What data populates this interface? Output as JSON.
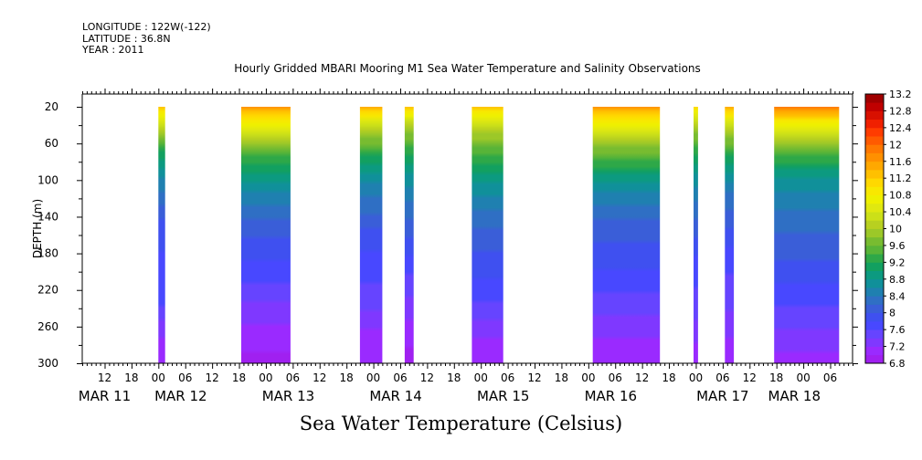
{
  "header": {
    "longitude": "LONGITUDE : 122W(-122)",
    "latitude": "LATITUDE : 36.8N",
    "year": "YEAR : 2011"
  },
  "chart_data": {
    "type": "heatmap",
    "title": "Hourly Gridded MBARI Mooring M1 Sea Water Temperature and Salinity Observations",
    "xlabel": "",
    "ylabel": "DEPTH (m)",
    "colorbar_title": "Sea Water Temperature (Celsius)",
    "x_unit": "hours since MAR 11 00:00",
    "xlim": [
      7,
      179
    ],
    "ylim": [
      300,
      6
    ],
    "y_ticks": [
      20,
      60,
      100,
      140,
      180,
      220,
      260,
      300
    ],
    "x_hour_ticks": [
      {
        "h": 12,
        "label": "12"
      },
      {
        "h": 18,
        "label": "18"
      },
      {
        "h": 24,
        "label": "00"
      },
      {
        "h": 30,
        "label": "06"
      },
      {
        "h": 36,
        "label": "12"
      },
      {
        "h": 42,
        "label": "18"
      },
      {
        "h": 48,
        "label": "00"
      },
      {
        "h": 54,
        "label": "06"
      },
      {
        "h": 60,
        "label": "12"
      },
      {
        "h": 66,
        "label": "18"
      },
      {
        "h": 72,
        "label": "00"
      },
      {
        "h": 78,
        "label": "06"
      },
      {
        "h": 84,
        "label": "12"
      },
      {
        "h": 90,
        "label": "18"
      },
      {
        "h": 96,
        "label": "00"
      },
      {
        "h": 102,
        "label": "06"
      },
      {
        "h": 108,
        "label": "12"
      },
      {
        "h": 114,
        "label": "18"
      },
      {
        "h": 120,
        "label": "00"
      },
      {
        "h": 126,
        "label": "06"
      },
      {
        "h": 132,
        "label": "12"
      },
      {
        "h": 138,
        "label": "18"
      },
      {
        "h": 144,
        "label": "00"
      },
      {
        "h": 150,
        "label": "06"
      },
      {
        "h": 156,
        "label": "12"
      },
      {
        "h": 162,
        "label": "18"
      },
      {
        "h": 168,
        "label": "00"
      },
      {
        "h": 174,
        "label": "06"
      }
    ],
    "x_date_labels": [
      {
        "h": 12,
        "label": "MAR 11"
      },
      {
        "h": 29,
        "label": "MAR 12"
      },
      {
        "h": 53,
        "label": "MAR 13"
      },
      {
        "h": 77,
        "label": "MAR 14"
      },
      {
        "h": 101,
        "label": "MAR 15"
      },
      {
        "h": 125,
        "label": "MAR 16"
      },
      {
        "h": 150,
        "label": "MAR 17"
      },
      {
        "h": 166,
        "label": "MAR 18"
      }
    ],
    "colorbar_levels": [
      6.8,
      7.0,
      7.2,
      7.4,
      7.6,
      7.8,
      8.0,
      8.2,
      8.4,
      8.6,
      8.8,
      9.0,
      9.2,
      9.4,
      9.6,
      9.8,
      10.0,
      10.2,
      10.4,
      10.6,
      10.8,
      11.0,
      11.2,
      11.4,
      11.6,
      11.8,
      12.0,
      12.2,
      12.4,
      12.6,
      12.8,
      13.0,
      13.2
    ],
    "colorbar_labels": [
      "6.8",
      "7.2",
      "7.6",
      "8",
      "8.4",
      "8.8",
      "9.2",
      "9.6",
      "10",
      "10.4",
      "10.8",
      "11.2",
      "11.6",
      "12",
      "12.4",
      "12.8",
      "13.2"
    ],
    "colorbar_colors": [
      "#a020f0",
      "#9a2aff",
      "#7f38ff",
      "#6644ff",
      "#4848ff",
      "#3f50f0",
      "#3a5ed8",
      "#2f6fc4",
      "#1f80b0",
      "#10909a",
      "#0c9a80",
      "#12a060",
      "#2ea848",
      "#58b438",
      "#78bc30",
      "#9cc828",
      "#b8d020",
      "#cce018",
      "#e0e810",
      "#eef000",
      "#f8e800",
      "#ffd800",
      "#ffc000",
      "#ffa800",
      "#ff9000",
      "#ff7800",
      "#ff5a00",
      "#ff3c00",
      "#f02000",
      "#d81000",
      "#c00000",
      "#a00000"
    ],
    "segments": [
      {
        "start": 24.0,
        "end": 25.5,
        "profile": [
          {
            "d": 20,
            "t": 11.2
          },
          {
            "d": 45,
            "t": 10.0
          },
          {
            "d": 75,
            "t": 9.0
          },
          {
            "d": 105,
            "t": 8.5
          },
          {
            "d": 150,
            "t": 7.9
          },
          {
            "d": 235,
            "t": 7.6
          },
          {
            "d": 270,
            "t": 7.2
          },
          {
            "d": 300,
            "t": 7.0
          }
        ]
      },
      {
        "start": 42.5,
        "end": 53.5,
        "profile": [
          {
            "d": 20,
            "t": 11.6
          },
          {
            "d": 40,
            "t": 10.6
          },
          {
            "d": 70,
            "t": 9.5
          },
          {
            "d": 100,
            "t": 8.8
          },
          {
            "d": 140,
            "t": 8.2
          },
          {
            "d": 200,
            "t": 7.7
          },
          {
            "d": 240,
            "t": 7.3
          },
          {
            "d": 300,
            "t": 6.9
          }
        ]
      },
      {
        "start": 69.0,
        "end": 74.0,
        "profile": [
          {
            "d": 20,
            "t": 11.4
          },
          {
            "d": 40,
            "t": 10.2
          },
          {
            "d": 80,
            "t": 9.0
          },
          {
            "d": 110,
            "t": 8.5
          },
          {
            "d": 160,
            "t": 7.9
          },
          {
            "d": 230,
            "t": 7.5
          },
          {
            "d": 260,
            "t": 7.2
          },
          {
            "d": 300,
            "t": 7.0
          }
        ]
      },
      {
        "start": 79.0,
        "end": 81.0,
        "profile": [
          {
            "d": 20,
            "t": 11.2
          },
          {
            "d": 40,
            "t": 10.0
          },
          {
            "d": 80,
            "t": 9.0
          },
          {
            "d": 120,
            "t": 8.4
          },
          {
            "d": 180,
            "t": 7.8
          },
          {
            "d": 250,
            "t": 7.2
          },
          {
            "d": 300,
            "t": 6.9
          }
        ]
      },
      {
        "start": 94.0,
        "end": 101.0,
        "profile": [
          {
            "d": 20,
            "t": 11.2
          },
          {
            "d": 40,
            "t": 10.2
          },
          {
            "d": 70,
            "t": 9.4
          },
          {
            "d": 110,
            "t": 8.7
          },
          {
            "d": 150,
            "t": 8.2
          },
          {
            "d": 220,
            "t": 7.7
          },
          {
            "d": 260,
            "t": 7.3
          },
          {
            "d": 300,
            "t": 7.0
          }
        ]
      },
      {
        "start": 121.0,
        "end": 136.0,
        "profile": [
          {
            "d": 20,
            "t": 11.6
          },
          {
            "d": 40,
            "t": 10.6
          },
          {
            "d": 70,
            "t": 9.6
          },
          {
            "d": 100,
            "t": 8.8
          },
          {
            "d": 150,
            "t": 8.1
          },
          {
            "d": 210,
            "t": 7.7
          },
          {
            "d": 260,
            "t": 7.3
          },
          {
            "d": 300,
            "t": 7.0
          }
        ]
      },
      {
        "start": 143.5,
        "end": 144.5,
        "profile": [
          {
            "d": 20,
            "t": 11.0
          },
          {
            "d": 40,
            "t": 10.0
          },
          {
            "d": 80,
            "t": 9.0
          },
          {
            "d": 120,
            "t": 8.4
          },
          {
            "d": 180,
            "t": 7.8
          },
          {
            "d": 250,
            "t": 7.4
          },
          {
            "d": 300,
            "t": 7.0
          }
        ]
      },
      {
        "start": 150.5,
        "end": 152.5,
        "profile": [
          {
            "d": 20,
            "t": 11.4
          },
          {
            "d": 40,
            "t": 10.2
          },
          {
            "d": 80,
            "t": 9.0
          },
          {
            "d": 120,
            "t": 8.3
          },
          {
            "d": 180,
            "t": 7.7
          },
          {
            "d": 260,
            "t": 7.3
          },
          {
            "d": 300,
            "t": 7.0
          }
        ]
      },
      {
        "start": 161.5,
        "end": 176.0,
        "profile": [
          {
            "d": 20,
            "t": 11.8
          },
          {
            "d": 40,
            "t": 10.6
          },
          {
            "d": 70,
            "t": 9.5
          },
          {
            "d": 100,
            "t": 8.7
          },
          {
            "d": 140,
            "t": 8.3
          },
          {
            "d": 200,
            "t": 7.9
          },
          {
            "d": 250,
            "t": 7.5
          },
          {
            "d": 300,
            "t": 7.1
          }
        ]
      }
    ]
  }
}
